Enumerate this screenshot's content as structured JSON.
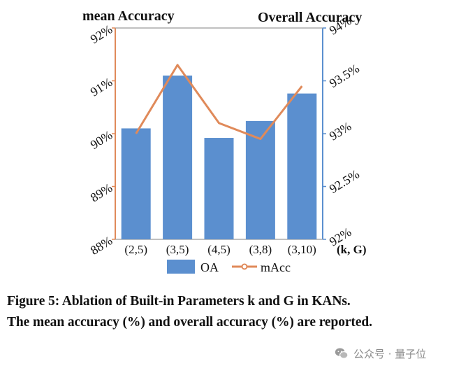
{
  "chart_data": {
    "type": "bar",
    "categories": [
      "(2,5)",
      "(3,5)",
      "(4,5)",
      "(3,8)",
      "(3,10)"
    ],
    "xlabel": "(k, G)",
    "series": [
      {
        "name": "OA",
        "kind": "bar",
        "axis": "right",
        "color": "#5b8fcf",
        "unit": "%",
        "values": [
          93.05,
          93.55,
          92.96,
          93.12,
          93.38
        ]
      },
      {
        "name": "mAcc",
        "kind": "line",
        "axis": "left",
        "color": "#e08a5a",
        "unit": "%",
        "values": [
          90.0,
          91.3,
          90.2,
          89.9,
          90.9
        ]
      }
    ],
    "y_left": {
      "label": "mean Accuracy",
      "ylim": [
        88,
        92
      ],
      "ticks": [
        "88%",
        "89%",
        "90%",
        "91%",
        "92%"
      ]
    },
    "y_right": {
      "label": "Overall Accuracy",
      "ylim": [
        92,
        94
      ],
      "ticks": [
        "92%",
        "92.5%",
        "93%",
        "93.5%",
        "94%"
      ]
    },
    "legend": {
      "placement": "bottom",
      "entries": [
        "OA",
        "mAcc"
      ]
    },
    "grid": false
  },
  "caption": {
    "line1": "Figure 5: Ablation of Built-in Parameters k and G in KANs.",
    "line2": "The mean accuracy (%) and overall accuracy (%) are reported."
  },
  "watermark": {
    "text": "公众号 · 量子位",
    "icon": "wechat-icon"
  }
}
